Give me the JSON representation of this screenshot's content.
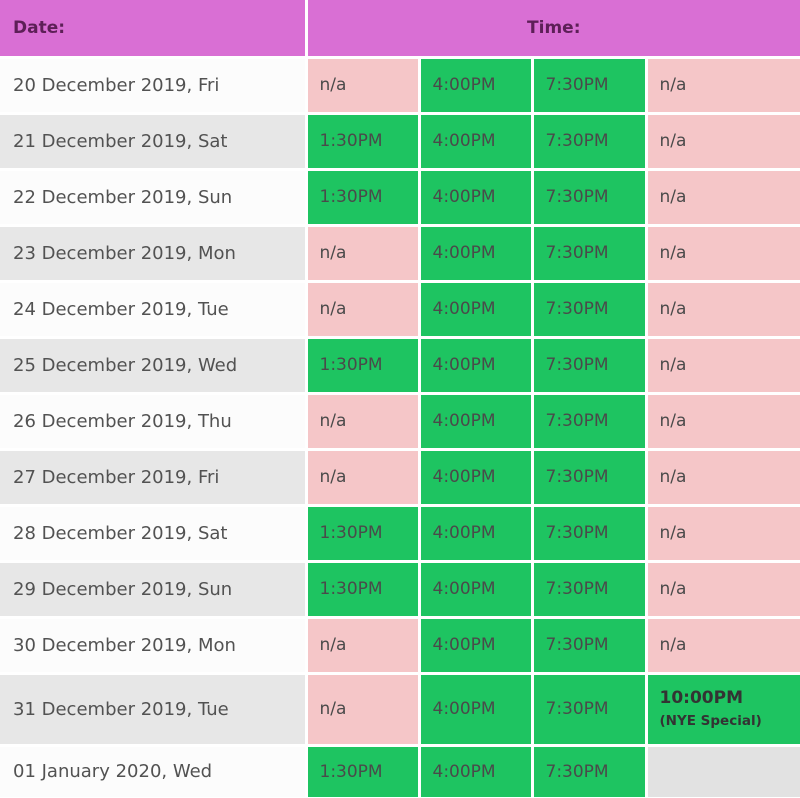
{
  "header": {
    "date_label": "Date:",
    "time_label": "Time:"
  },
  "colors": {
    "header_bg": "#d96fd4",
    "header_text": "#5d1f57",
    "row_bg": "#fcfcfc",
    "row_alt_bg": "#e7e7e7",
    "available_bg": "#1ec461",
    "na_bg": "#f5c6c8",
    "empty_bg": "#e2e2e2",
    "cell_text": "#4a4a4a",
    "date_text": "#525252"
  },
  "rows": [
    {
      "date": "20 December 2019, Fri",
      "slots": [
        {
          "text": "n/a",
          "status": "na"
        },
        {
          "text": "4:00PM",
          "status": "available"
        },
        {
          "text": "7:30PM",
          "status": "available"
        },
        {
          "text": "n/a",
          "status": "na"
        }
      ]
    },
    {
      "date": "21 December 2019, Sat",
      "slots": [
        {
          "text": "1:30PM",
          "status": "available"
        },
        {
          "text": "4:00PM",
          "status": "available"
        },
        {
          "text": "7:30PM",
          "status": "available"
        },
        {
          "text": "n/a",
          "status": "na"
        }
      ]
    },
    {
      "date": "22 December 2019, Sun",
      "slots": [
        {
          "text": "1:30PM",
          "status": "available"
        },
        {
          "text": "4:00PM",
          "status": "available"
        },
        {
          "text": "7:30PM",
          "status": "available"
        },
        {
          "text": "n/a",
          "status": "na"
        }
      ]
    },
    {
      "date": "23 December 2019, Mon",
      "slots": [
        {
          "text": "n/a",
          "status": "na"
        },
        {
          "text": "4:00PM",
          "status": "available"
        },
        {
          "text": "7:30PM",
          "status": "available"
        },
        {
          "text": "n/a",
          "status": "na"
        }
      ]
    },
    {
      "date": "24 December 2019, Tue",
      "slots": [
        {
          "text": "n/a",
          "status": "na"
        },
        {
          "text": "4:00PM",
          "status": "available"
        },
        {
          "text": "7:30PM",
          "status": "available"
        },
        {
          "text": "n/a",
          "status": "na"
        }
      ]
    },
    {
      "date": "25 December 2019, Wed",
      "slots": [
        {
          "text": "1:30PM",
          "status": "available"
        },
        {
          "text": "4:00PM",
          "status": "available"
        },
        {
          "text": "7:30PM",
          "status": "available"
        },
        {
          "text": "n/a",
          "status": "na"
        }
      ]
    },
    {
      "date": "26 December 2019, Thu",
      "slots": [
        {
          "text": "n/a",
          "status": "na"
        },
        {
          "text": "4:00PM",
          "status": "available"
        },
        {
          "text": "7:30PM",
          "status": "available"
        },
        {
          "text": "n/a",
          "status": "na"
        }
      ]
    },
    {
      "date": "27 December 2019, Fri",
      "slots": [
        {
          "text": "n/a",
          "status": "na"
        },
        {
          "text": "4:00PM",
          "status": "available"
        },
        {
          "text": "7:30PM",
          "status": "available"
        },
        {
          "text": "n/a",
          "status": "na"
        }
      ]
    },
    {
      "date": "28 December 2019, Sat",
      "slots": [
        {
          "text": "1:30PM",
          "status": "available"
        },
        {
          "text": "4:00PM",
          "status": "available"
        },
        {
          "text": "7:30PM",
          "status": "available"
        },
        {
          "text": "n/a",
          "status": "na"
        }
      ]
    },
    {
      "date": "29 December 2019, Sun",
      "slots": [
        {
          "text": "1:30PM",
          "status": "available"
        },
        {
          "text": "4:00PM",
          "status": "available"
        },
        {
          "text": "7:30PM",
          "status": "available"
        },
        {
          "text": "n/a",
          "status": "na"
        }
      ]
    },
    {
      "date": "30 December 2019, Mon",
      "slots": [
        {
          "text": "n/a",
          "status": "na"
        },
        {
          "text": "4:00PM",
          "status": "available"
        },
        {
          "text": "7:30PM",
          "status": "available"
        },
        {
          "text": "n/a",
          "status": "na"
        }
      ]
    },
    {
      "date": "31 December 2019, Tue",
      "slots": [
        {
          "text": "n/a",
          "status": "na"
        },
        {
          "text": "4:00PM",
          "status": "available"
        },
        {
          "text": "7:30PM",
          "status": "available"
        },
        {
          "text": "10:00PM",
          "subtext": "(NYE Special)",
          "status": "special"
        }
      ]
    },
    {
      "date": "01 January 2020, Wed",
      "slots": [
        {
          "text": "1:30PM",
          "status": "available"
        },
        {
          "text": "4:00PM",
          "status": "available"
        },
        {
          "text": "7:30PM",
          "status": "available"
        },
        {
          "text": "",
          "status": "empty"
        }
      ]
    }
  ]
}
